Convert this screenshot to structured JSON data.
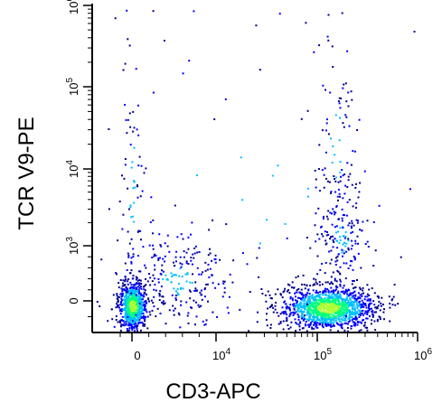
{
  "chart_data": {
    "type": "scatter",
    "title": "",
    "xlabel": "CD3-APC",
    "ylabel": "TCR V9-PE",
    "x_ticks": [
      {
        "label": "0",
        "value": 0
      },
      {
        "label": "10^4",
        "value": 10000
      },
      {
        "label": "10^5",
        "value": 100000
      },
      {
        "label": "10^6",
        "value": 1000000
      }
    ],
    "y_ticks": [
      {
        "label": "0",
        "value": 0
      },
      {
        "label": "10^3",
        "value": 1000
      },
      {
        "label": "10^4",
        "value": 10000
      },
      {
        "label": "10^5",
        "value": 100000
      },
      {
        "label": "10^6",
        "value": 1000000
      }
    ],
    "x_scale": "biexponential",
    "y_scale": "biexponential",
    "xlim": [
      -1000,
      1000000
    ],
    "ylim": [
      -1000,
      1000000
    ],
    "grid": false,
    "density_colors": [
      "#00008b",
      "#0000ff",
      "#00bfff",
      "#00ff7f",
      "#adff2f",
      "#ff8c00"
    ],
    "populations": [
      {
        "center_x": 0,
        "center_y": 0,
        "relative_density": "high"
      },
      {
        "center_x": 150000,
        "center_y": 0,
        "relative_density": "high"
      },
      {
        "center_x": 150000,
        "center_y": 2000,
        "relative_density": "low"
      },
      {
        "center_x": 3000,
        "center_y": 500,
        "relative_density": "low"
      }
    ]
  }
}
